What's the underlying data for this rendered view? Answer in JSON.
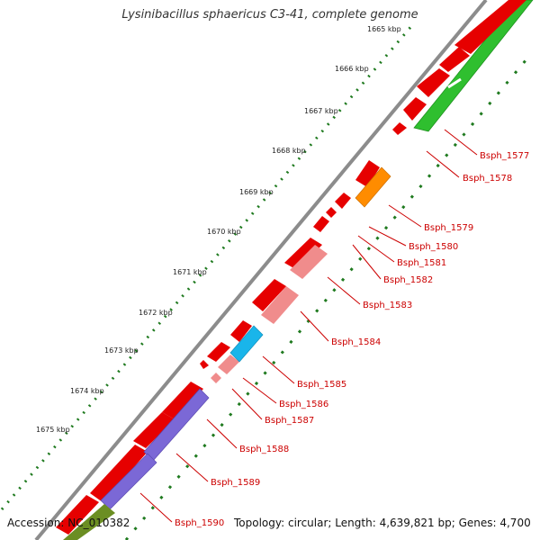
{
  "title": "Lysinibacillus sphaericus C3-41, complete genome",
  "footer": {
    "accession_label": "Accession:",
    "accession": "NC_010382",
    "topology_label": "Topology:",
    "topology": "circular",
    "length_label": "Length:",
    "length": "4,639,821 bp",
    "genes_label": "Genes:",
    "genes": "4,700"
  },
  "ruler_labels": [
    "1665 kbp",
    "1666 kbp",
    "1667 kbp",
    "1668 kbp",
    "1669 kbp",
    "1670 kbp",
    "1671 kbp",
    "1672 kbp",
    "1673 kbp",
    "1674 kbp",
    "1675 kbp"
  ],
  "gene_labels": [
    "Bsph_1577",
    "Bsph_1578",
    "Bsph_1579",
    "Bsph_1580",
    "Bsph_1581",
    "Bsph_1582",
    "Bsph_1583",
    "Bsph_1584",
    "Bsph_1585",
    "Bsph_1586",
    "Bsph_1587",
    "Bsph_1588",
    "Bsph_1589",
    "Bsph_1590"
  ],
  "colors": {
    "backbone": "#8c8c8c",
    "ruler_dots": "#1f7a1f",
    "ruler_text": "#222222",
    "gene_forward": "#e60000",
    "gene_reverse": "#f08c8c",
    "label_text": "#cc0000",
    "leader_line": "#cc0000",
    "green_track": "#2fbf2f",
    "orange_feature": "#ff8c00",
    "cyan_feature": "#19b5ea",
    "purple_feature": "#7b68d6",
    "olive_feature": "#6b8e23"
  }
}
